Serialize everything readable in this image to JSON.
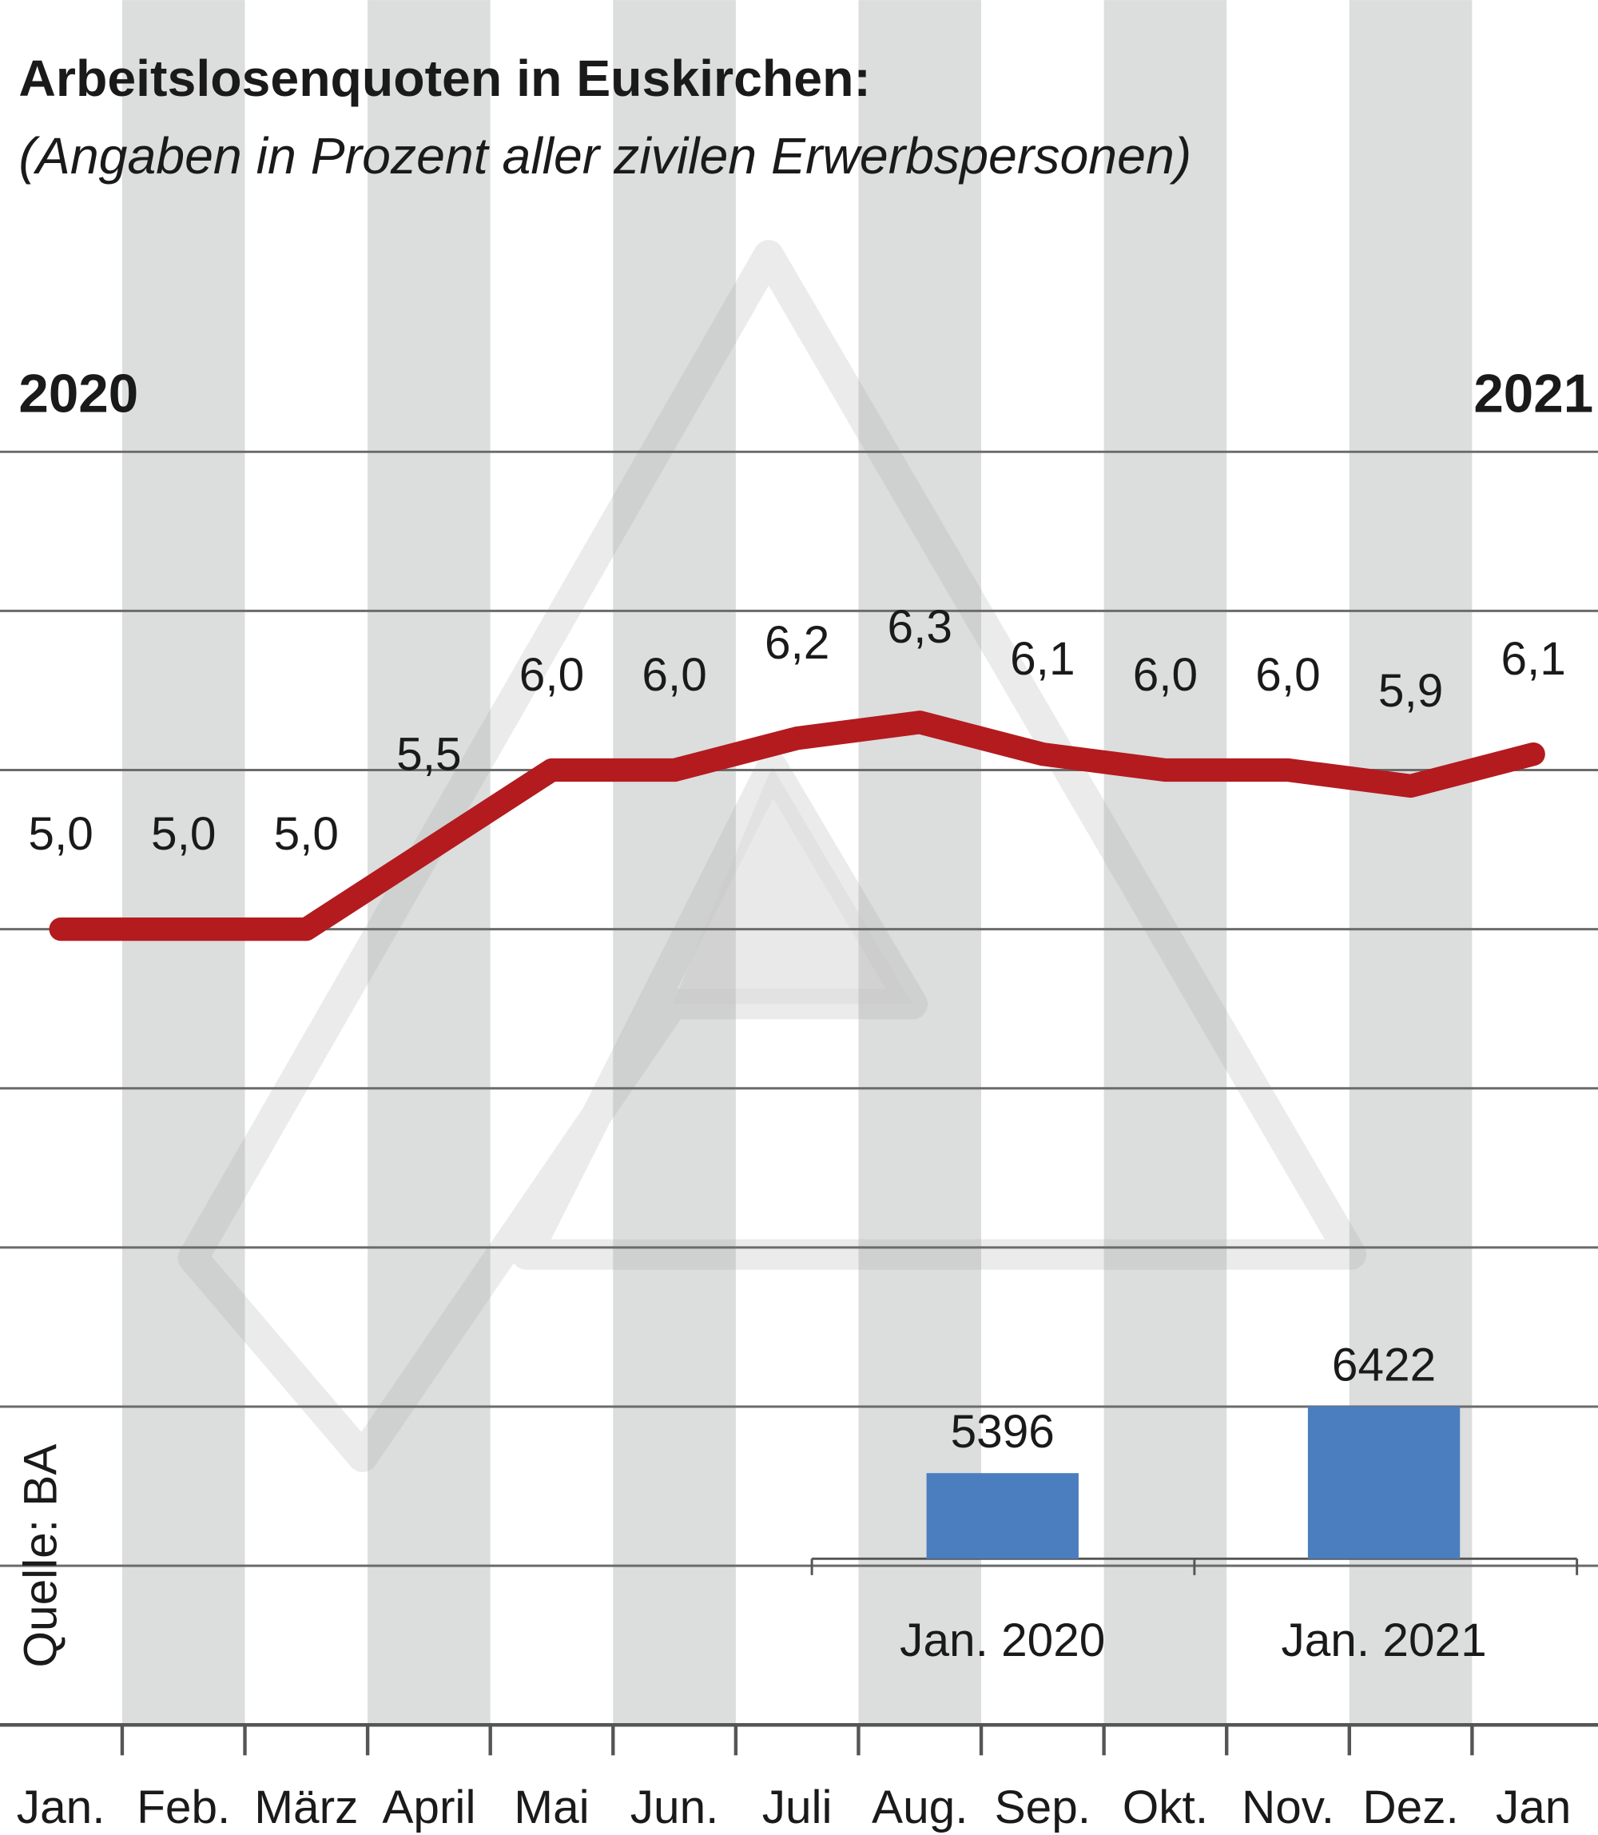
{
  "chart_data": {
    "type": "line",
    "title": "Arbeitslosenquoten in Euskirchen:",
    "subtitle": "(Angaben in Prozent aller zivilen Erwerbspersonen)",
    "year_start": "2020",
    "year_end": "2021",
    "categories": [
      "Jan.",
      "Feb.",
      "März",
      "April",
      "Mai",
      "Jun.",
      "Juli",
      "Aug.",
      "Sep.",
      "Okt.",
      "Nov.",
      "Dez.",
      "Jan"
    ],
    "values": [
      5.0,
      5.0,
      5.0,
      5.5,
      6.0,
      6.0,
      6.2,
      6.3,
      6.1,
      6.0,
      6.0,
      5.9,
      6.1
    ],
    "value_labels": [
      "5,0",
      "5,0",
      "5,0",
      "5,5",
      "6,0",
      "6,0",
      "6,2",
      "6,3",
      "6,1",
      "6,0",
      "6,0",
      "5,9",
      "6,1"
    ],
    "ylim": [
      0,
      8
    ],
    "grid": true,
    "line_color": "#b31b1f",
    "source": "Quelle: BA",
    "inset_bar": {
      "type": "bar",
      "categories": [
        "Jan. 2020",
        "Jan. 2021"
      ],
      "values": [
        5396,
        6422
      ],
      "value_labels": [
        "5396",
        "6422"
      ],
      "color": "#4a7ebf"
    }
  }
}
